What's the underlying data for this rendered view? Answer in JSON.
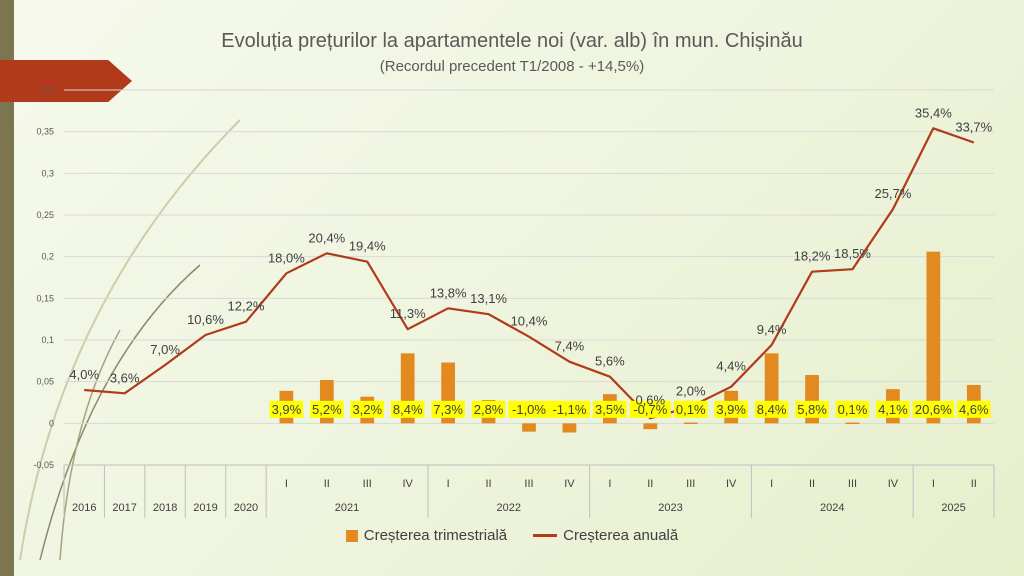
{
  "chart_data": {
    "type": "bar+line",
    "title": "Evoluția prețurilor la apartamentele noi (var. alb)  în mun. Chișinău",
    "subtitle": "(Recordul precedent T1/2008 - +14,5%)",
    "ylim": [
      -0.05,
      0.4
    ],
    "y_ticks": [
      "-0,05",
      "0",
      "0,05",
      "0,1",
      "0,15",
      "0,2",
      "0,25",
      "0,3",
      "0,35",
      "0,4"
    ],
    "categories": [
      "2016",
      "2017",
      "2018",
      "2019",
      "2020",
      "I",
      "II",
      "III",
      "IV",
      "I",
      "II",
      "III",
      "IV",
      "I",
      "II",
      "III",
      "IV",
      "I",
      "II",
      "III",
      "IV",
      "I",
      "II"
    ],
    "year_groups": [
      {
        "label": "2016",
        "span": 1
      },
      {
        "label": "2017",
        "span": 1
      },
      {
        "label": "2018",
        "span": 1
      },
      {
        "label": "2019",
        "span": 1
      },
      {
        "label": "2020",
        "span": 1
      },
      {
        "label": "2021",
        "span": 4
      },
      {
        "label": "2022",
        "span": 4
      },
      {
        "label": "2023",
        "span": 4
      },
      {
        "label": "2024",
        "span": 4
      },
      {
        "label": "2025",
        "span": 2
      }
    ],
    "series": [
      {
        "name": "Creșterea trimestrială",
        "type": "bar",
        "color": "#e28a1f",
        "values": [
          null,
          null,
          null,
          null,
          null,
          0.039,
          0.052,
          0.032,
          0.084,
          0.073,
          0.028,
          -0.01,
          -0.011,
          0.035,
          -0.007,
          0.001,
          0.039,
          0.084,
          0.058,
          0.001,
          0.041,
          0.206,
          0.046
        ],
        "labels": [
          null,
          null,
          null,
          null,
          null,
          "3,9%",
          "5,2%",
          "3,2%",
          "8,4%",
          "7,3%",
          "2,8%",
          "-1,0%",
          "-1,1%",
          "3,5%",
          "-0,7%",
          "0,1%",
          "3,9%",
          "8,4%",
          "5,8%",
          "0,1%",
          "4,1%",
          "20,6%",
          "4,6%"
        ]
      },
      {
        "name": "Creșterea anuală",
        "type": "line",
        "color": "#b03a1a",
        "values": [
          0.04,
          0.036,
          0.07,
          0.106,
          0.122,
          0.18,
          0.204,
          0.194,
          0.113,
          0.138,
          0.131,
          0.104,
          0.074,
          0.056,
          0.006,
          0.02,
          0.044,
          0.094,
          0.182,
          0.185,
          0.257,
          0.354,
          0.337
        ],
        "labels": [
          "4,0%",
          "3,6%",
          "7,0%",
          "10,6%",
          "12,2%",
          "18,0%",
          "20,4%",
          "19,4%",
          "11,3%",
          "13,8%",
          "13,1%",
          "10,4%",
          "7,4%",
          "5,6%",
          "0,6%",
          "2,0%",
          "4,4%",
          "9,4%",
          "18,2%",
          "18,5%",
          "25,7%",
          "35,4%",
          "33,7%"
        ]
      }
    ],
    "legend_position": "bottom"
  },
  "colors": {
    "bar": "#e28a1f",
    "line": "#b03a1a",
    "highlight": "#ffff00",
    "grid": "#d9d9d9"
  }
}
